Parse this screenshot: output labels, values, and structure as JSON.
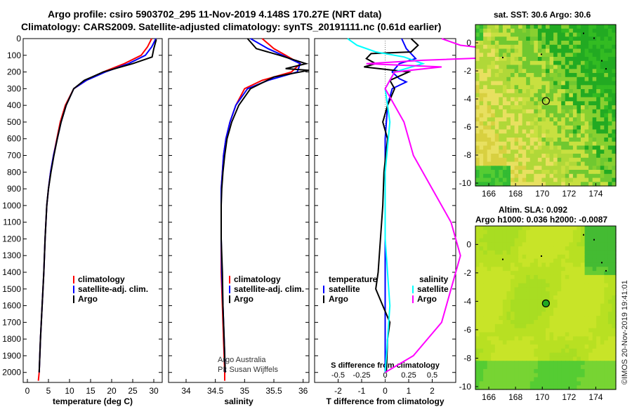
{
  "header": {
    "line1": "Argo profile: csiro 5903702_295 11-Nov-2019 4.148S 170.27E (NRT data)",
    "line2": "Climatology: CARS2009. Satellite-adjusted climatology: synTS_20191111.nc (0.61d earlier)"
  },
  "maps": {
    "sst_title": "sat. SST: 30.6 Argo: 30.6",
    "sla_title1": "Altim. SLA: 0.092",
    "sla_title2": "Argo h1000: 0.036 h2000: -0.0087",
    "x_ticks": [
      "166",
      "168",
      "170",
      "172",
      "174"
    ],
    "y_ticks": [
      "0",
      "-2",
      "-4",
      "-6",
      "-8",
      "-10"
    ],
    "float_position": {
      "lon": 170.27,
      "lat": -4.148
    }
  },
  "watermark": "©IMOS 20-Nov-2019 19:41:01",
  "credits": {
    "line1": "Argo Australia",
    "line2": "PI: Susan Wijffels"
  },
  "colors": {
    "climatology": "#ff0000",
    "satellite": "#0000ff",
    "argo": "#000000",
    "sal_sat": "#00ffff",
    "sal_argo": "#ff00ff"
  },
  "chart_data": [
    {
      "type": "line",
      "xlabel": "temperature (deg C)",
      "ylabel": "",
      "xlim": [
        -1,
        32
      ],
      "ylim": [
        2060,
        0
      ],
      "x_ticks": [
        "0",
        "5",
        "10",
        "15",
        "20",
        "25",
        "30"
      ],
      "y_ticks": [
        "0",
        "100",
        "200",
        "300",
        "400",
        "500",
        "600",
        "700",
        "800",
        "900",
        "1000",
        "1100",
        "1200",
        "1300",
        "1400",
        "1500",
        "1600",
        "1700",
        "1800",
        "1900",
        "2000"
      ],
      "legend": [
        "climatology",
        "satellite-adj. clim.",
        "Argo"
      ],
      "series": [
        {
          "name": "climatology",
          "points": [
            [
              29.5,
              0
            ],
            [
              28.5,
              50
            ],
            [
              27,
              100
            ],
            [
              23,
              150
            ],
            [
              18,
              200
            ],
            [
              14,
              250
            ],
            [
              11,
              300
            ],
            [
              9,
              400
            ],
            [
              7.8,
              500
            ],
            [
              7,
              600
            ],
            [
              6.2,
              700
            ],
            [
              5.5,
              800
            ],
            [
              5,
              900
            ],
            [
              4.6,
              1000
            ],
            [
              4.2,
              1200
            ],
            [
              3.9,
              1400
            ],
            [
              3.5,
              1600
            ],
            [
              3.1,
              1800
            ],
            [
              2.8,
              2000
            ],
            [
              2.6,
              2050
            ]
          ]
        },
        {
          "name": "satellite-adj. clim.",
          "points": [
            [
              30.5,
              0
            ],
            [
              29.5,
              50
            ],
            [
              28,
              100
            ],
            [
              24,
              150
            ],
            [
              18.5,
              200
            ],
            [
              14,
              250
            ],
            [
              11,
              300
            ],
            [
              9.2,
              400
            ],
            [
              8,
              500
            ],
            [
              7.1,
              600
            ],
            [
              6.2,
              700
            ],
            [
              5.5,
              800
            ],
            [
              5,
              900
            ],
            [
              4.6,
              1000
            ],
            [
              4.2,
              1200
            ],
            [
              3.9,
              1400
            ],
            [
              3.5,
              1600
            ],
            [
              3.1,
              1800
            ],
            [
              2.8,
              2000
            ]
          ]
        },
        {
          "name": "Argo",
          "points": [
            [
              30.6,
              5
            ],
            [
              30,
              60
            ],
            [
              29.6,
              110
            ],
            [
              25,
              150
            ],
            [
              18,
              200
            ],
            [
              13.5,
              250
            ],
            [
              11,
              300
            ],
            [
              9.2,
              400
            ],
            [
              8,
              500
            ],
            [
              7.1,
              600
            ],
            [
              6.3,
              700
            ],
            [
              5.6,
              800
            ],
            [
              5,
              900
            ],
            [
              4.6,
              1000
            ],
            [
              4.2,
              1200
            ],
            [
              3.9,
              1400
            ],
            [
              3.5,
              1600
            ],
            [
              3.1,
              1800
            ],
            [
              2.8,
              2000
            ]
          ]
        }
      ]
    },
    {
      "type": "line",
      "xlabel": "salinity",
      "xlim": [
        33.7,
        36.1
      ],
      "ylim": [
        2060,
        0
      ],
      "x_ticks": [
        "34",
        "34.5",
        "35",
        "35.5",
        "36"
      ],
      "legend": [
        "climatology",
        "satellite-adj. clim.",
        "Argo"
      ],
      "series": [
        {
          "name": "climatology",
          "points": [
            [
              35.3,
              0
            ],
            [
              35.5,
              60
            ],
            [
              35.7,
              100
            ],
            [
              35.95,
              150
            ],
            [
              35.8,
              200
            ],
            [
              35.3,
              250
            ],
            [
              35,
              300
            ],
            [
              34.85,
              400
            ],
            [
              34.75,
              500
            ],
            [
              34.68,
              600
            ],
            [
              34.64,
              700
            ],
            [
              34.62,
              800
            ],
            [
              34.6,
              900
            ],
            [
              34.6,
              1000
            ],
            [
              34.6,
              1200
            ],
            [
              34.6,
              1400
            ],
            [
              34.62,
              1600
            ],
            [
              34.64,
              1800
            ],
            [
              34.66,
              2000
            ],
            [
              34.66,
              2050
            ]
          ]
        },
        {
          "name": "satellite-adj. clim.",
          "points": [
            [
              35.1,
              0
            ],
            [
              35.4,
              60
            ],
            [
              35.65,
              100
            ],
            [
              35.95,
              150
            ],
            [
              35.9,
              200
            ],
            [
              35.4,
              250
            ],
            [
              35.05,
              300
            ],
            [
              34.85,
              400
            ],
            [
              34.75,
              500
            ],
            [
              34.68,
              600
            ],
            [
              34.64,
              700
            ],
            [
              34.62,
              800
            ],
            [
              34.6,
              900
            ],
            [
              34.6,
              1000
            ],
            [
              34.6,
              1200
            ],
            [
              34.61,
              1400
            ],
            [
              34.63,
              1600
            ],
            [
              34.65,
              1800
            ],
            [
              34.67,
              2000
            ]
          ]
        },
        {
          "name": "Argo",
          "points": [
            [
              35.05,
              0
            ],
            [
              35.2,
              60
            ],
            [
              35.6,
              100
            ],
            [
              36.05,
              150
            ],
            [
              35.7,
              180
            ],
            [
              36.1,
              190
            ],
            [
              35.5,
              230
            ],
            [
              35.1,
              300
            ],
            [
              34.9,
              400
            ],
            [
              34.78,
              500
            ],
            [
              34.7,
              600
            ],
            [
              34.66,
              700
            ],
            [
              34.63,
              800
            ],
            [
              34.61,
              900
            ],
            [
              34.6,
              1000
            ],
            [
              34.6,
              1200
            ],
            [
              34.62,
              1400
            ],
            [
              34.63,
              1600
            ],
            [
              34.65,
              1800
            ],
            [
              34.67,
              2000
            ]
          ]
        }
      ]
    },
    {
      "type": "line",
      "xlabel": "T difference from climatology",
      "xlabel_top": "S difference from climatology",
      "xlim": [
        -3,
        3
      ],
      "ylim": [
        2060,
        0
      ],
      "x_ticks": [
        "-2",
        "-1",
        "0",
        "1",
        "2"
      ],
      "x_ticks_top": [
        "-0.5",
        "-0.25",
        "0",
        "0.25",
        "0.5"
      ],
      "legend_left_title": "temperature",
      "legend_right_title": "salinity",
      "legend_left": [
        "satellite",
        "Argo"
      ],
      "legend_right": [
        "satellite",
        "Argo"
      ],
      "series": [
        {
          "name": "satellite",
          "group": "temperature",
          "points": [
            [
              0.7,
              0
            ],
            [
              0.9,
              60
            ],
            [
              1.3,
              120
            ],
            [
              0.6,
              150
            ],
            [
              0.3,
              200
            ],
            [
              0.6,
              240
            ],
            [
              0.9,
              260
            ],
            [
              0.3,
              300
            ],
            [
              0.1,
              400
            ],
            [
              0,
              600
            ],
            [
              0,
              1000
            ],
            [
              0,
              1400
            ],
            [
              0,
              1800
            ],
            [
              0,
              2000
            ]
          ]
        },
        {
          "name": "Argo",
          "group": "temperature",
          "points": [
            [
              1.1,
              0
            ],
            [
              1.4,
              40
            ],
            [
              1.1,
              80
            ],
            [
              -0.6,
              90
            ],
            [
              -0.8,
              120
            ],
            [
              -0.4,
              150
            ],
            [
              -0.9,
              170
            ],
            [
              1,
              200
            ],
            [
              0.2,
              250
            ],
            [
              0.4,
              300
            ],
            [
              0.1,
              400
            ],
            [
              -0.1,
              500
            ],
            [
              0.1,
              600
            ],
            [
              -0.05,
              800
            ],
            [
              -0.1,
              1000
            ],
            [
              -0.2,
              1200
            ],
            [
              -0.3,
              1400
            ],
            [
              -0.4,
              1500
            ],
            [
              -0.1,
              1600
            ],
            [
              0.2,
              1700
            ],
            [
              0.1,
              1800
            ],
            [
              0.05,
              2000
            ]
          ]
        },
        {
          "name": "satellite",
          "group": "salinity",
          "points": [
            [
              -0.4,
              0
            ],
            [
              -0.3,
              40
            ],
            [
              -0.1,
              80
            ],
            [
              0.2,
              110
            ],
            [
              0.4,
              150
            ],
            [
              0.1,
              200
            ],
            [
              0,
              300
            ],
            [
              0.05,
              500
            ],
            [
              0,
              800
            ],
            [
              0,
              1200
            ],
            [
              0.05,
              1600
            ],
            [
              0,
              2000
            ]
          ]
        },
        {
          "name": "Argo",
          "group": "salinity",
          "points": [
            [
              0.6,
              0
            ],
            [
              0.8,
              40
            ],
            [
              1.4,
              80
            ],
            [
              1.8,
              100
            ],
            [
              0.4,
              130
            ],
            [
              -0.2,
              150
            ],
            [
              0.6,
              170
            ],
            [
              0.1,
              200
            ],
            [
              0,
              300
            ],
            [
              0.2,
              500
            ],
            [
              0.3,
              700
            ],
            [
              0.5,
              900
            ],
            [
              0.7,
              1100
            ],
            [
              0.8,
              1300
            ],
            [
              0.7,
              1500
            ],
            [
              0.6,
              1700
            ],
            [
              0.3,
              1900
            ],
            [
              0,
              2000
            ]
          ]
        }
      ]
    }
  ]
}
